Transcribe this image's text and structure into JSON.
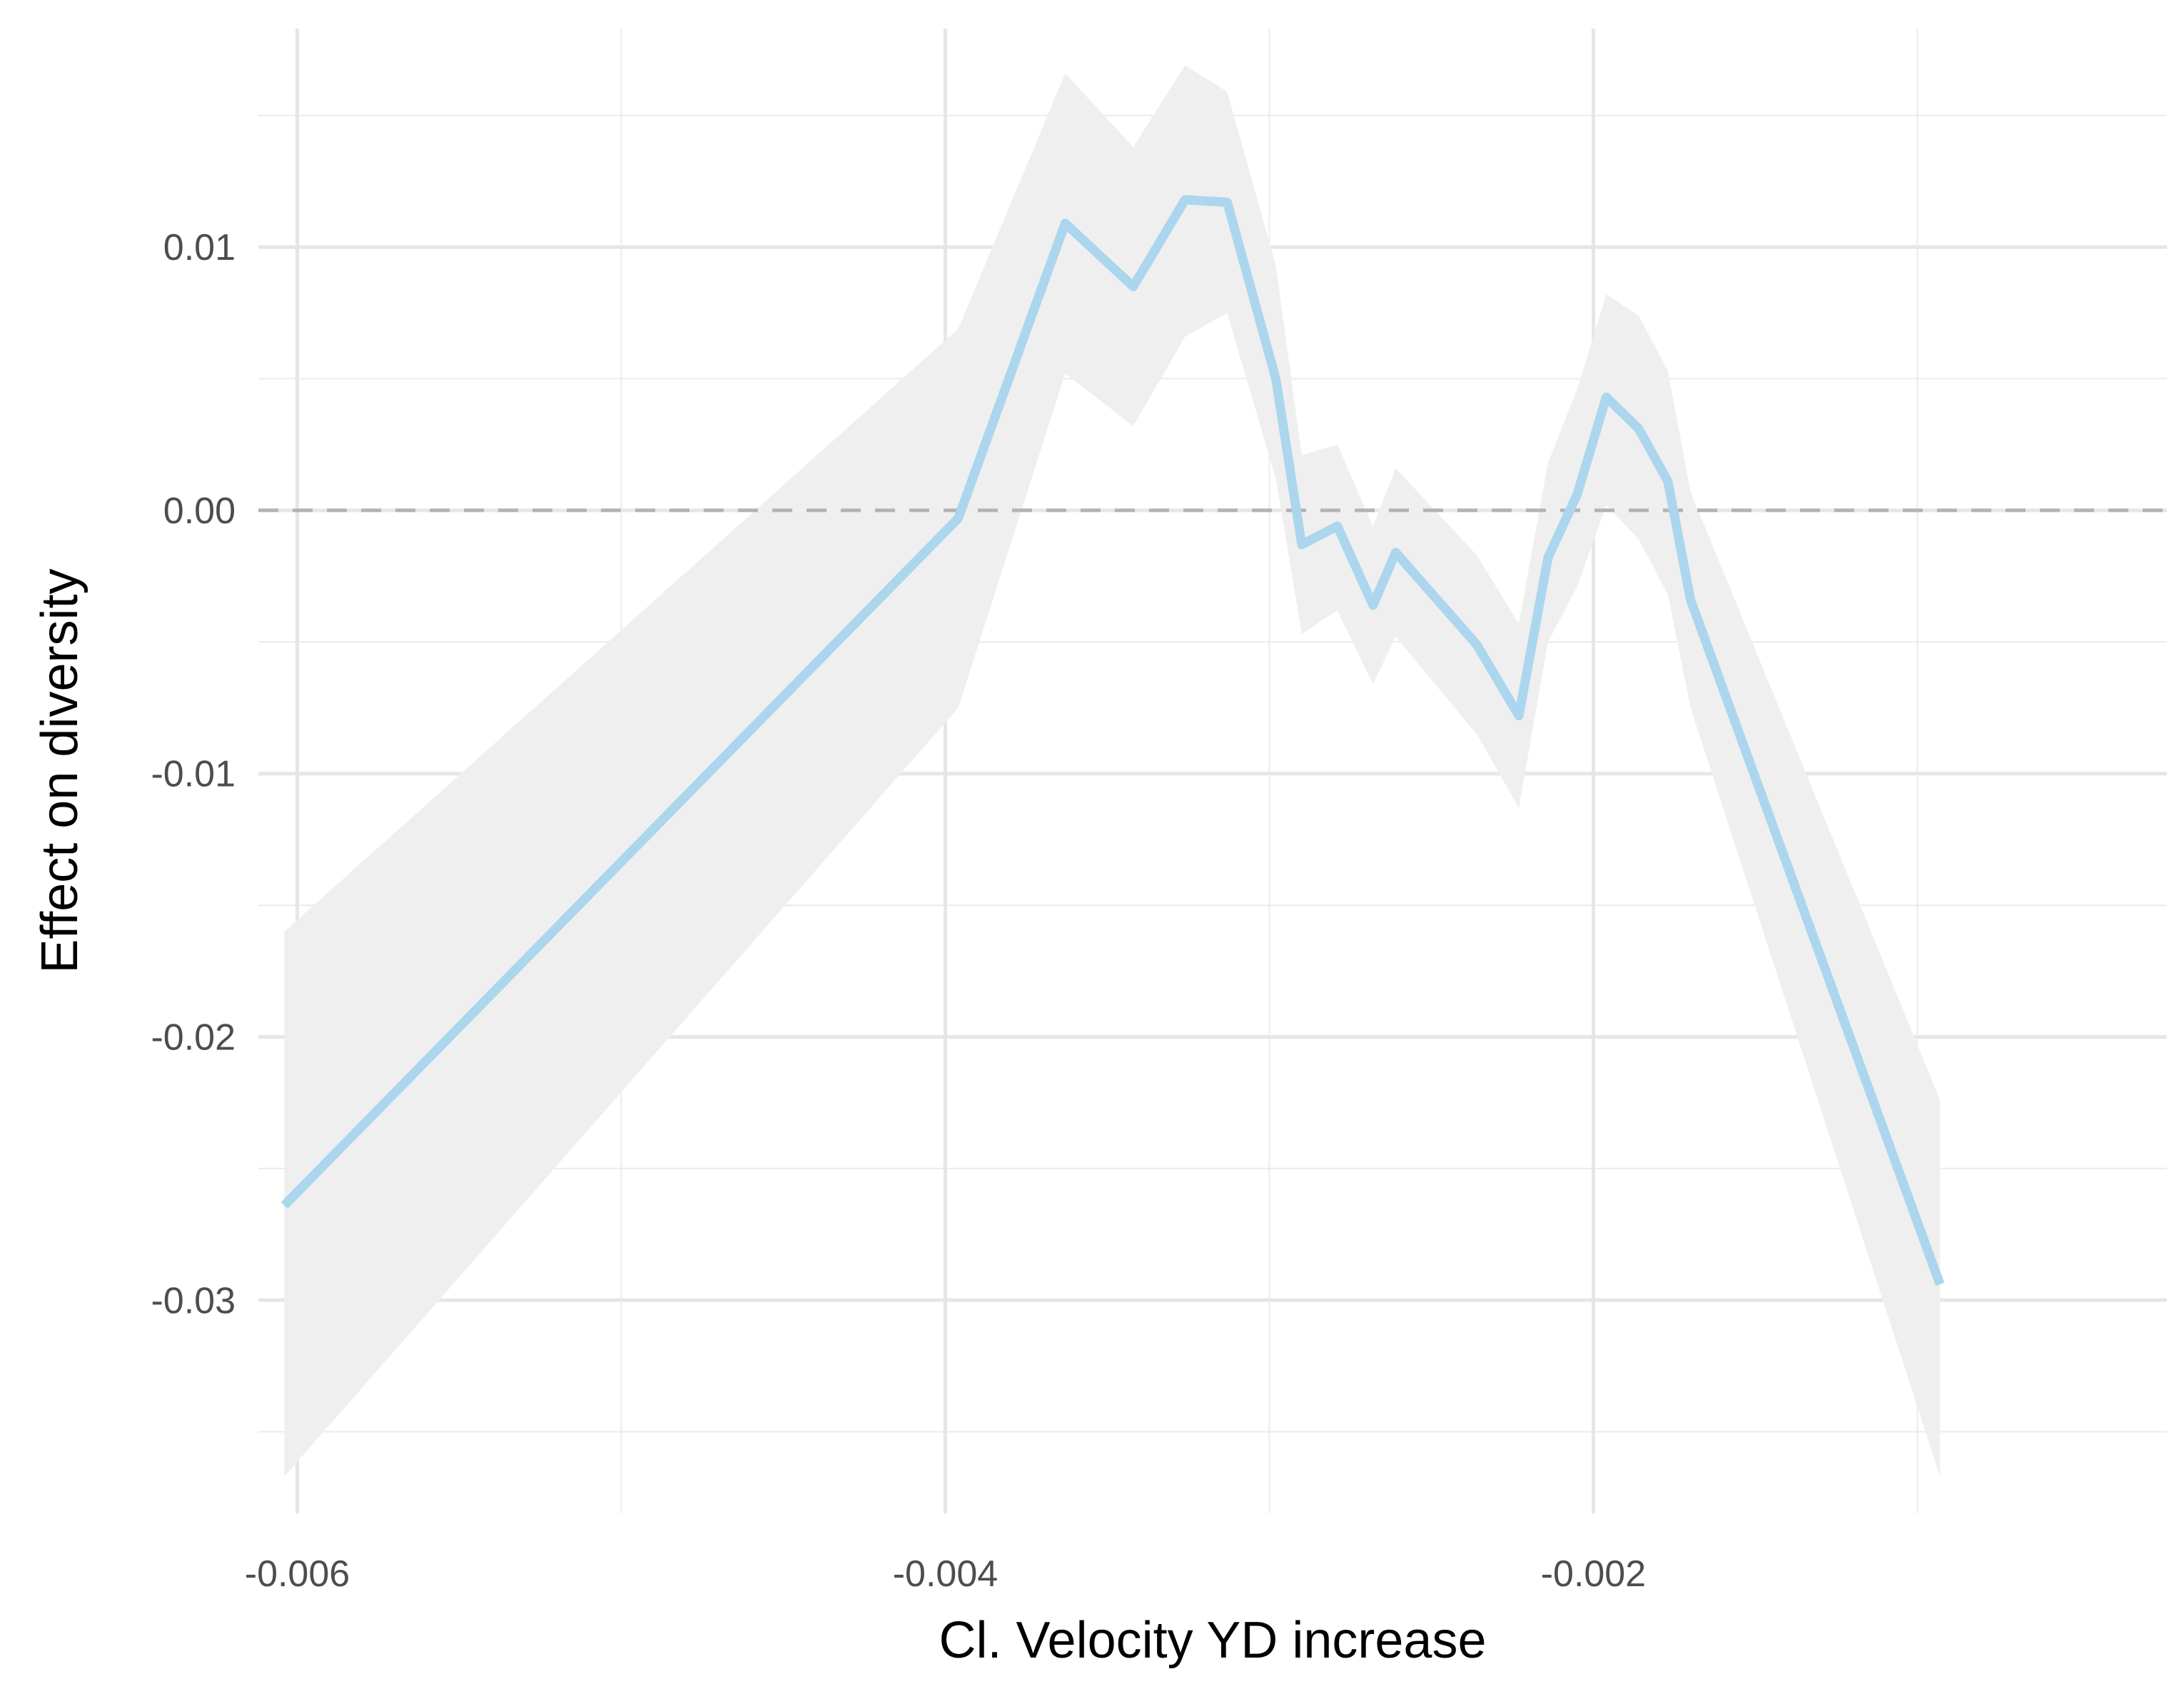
{
  "chart_data": {
    "type": "line",
    "title": "",
    "xlabel": "Cl. Velocity YD increase",
    "ylabel": "Effect on diversity",
    "xlim": [
      -0.00612,
      -0.00023
    ],
    "ylim": [
      -0.0381,
      0.0183
    ],
    "x_ticks": [
      {
        "value": -0.006,
        "label": "-0.006"
      },
      {
        "value": -0.004,
        "label": "-0.004"
      },
      {
        "value": -0.002,
        "label": "-0.002"
      }
    ],
    "x_minor_ticks": [
      -0.005,
      -0.003,
      -0.001
    ],
    "y_ticks": [
      {
        "value": 0.01,
        "label": "0.01"
      },
      {
        "value": 0.0,
        "label": "0.00"
      },
      {
        "value": -0.01,
        "label": "-0.01"
      },
      {
        "value": -0.02,
        "label": "-0.02"
      },
      {
        "value": -0.03,
        "label": "-0.03"
      }
    ],
    "y_minor_ticks": [
      0.015,
      0.005,
      -0.005,
      -0.015,
      -0.025,
      -0.035
    ],
    "reference_line": {
      "y": 0.0,
      "style": "dashed",
      "color": "#b3b3b3"
    },
    "grid": true,
    "line_color": "#abd6ee",
    "band_color": "#efefef",
    "series": [
      {
        "x": [
          -0.00604,
          -0.00396,
          -0.00363,
          -0.00342,
          -0.00326,
          -0.00313,
          -0.00298,
          -0.0029,
          -0.00279,
          -0.00268,
          -0.00261,
          -0.00236,
          -0.00223,
          -0.00214,
          -0.00205,
          -0.00196,
          -0.00186,
          -0.00177,
          -0.0017,
          -0.00093
        ],
        "y": [
          -0.0264,
          -0.0003,
          0.0109,
          0.0085,
          0.0118,
          0.0117,
          0.005,
          -0.0013,
          -0.0006,
          -0.0036,
          -0.0016,
          -0.0051,
          -0.0078,
          -0.0018,
          0.0006,
          0.0043,
          0.0031,
          0.0011,
          -0.0034,
          -0.0294
        ],
        "lower": [
          -0.0367,
          -0.0075,
          0.0052,
          0.0032,
          0.0066,
          0.0075,
          0.0012,
          -0.0047,
          -0.0038,
          -0.0066,
          -0.0048,
          -0.0085,
          -0.0113,
          -0.005,
          -0.0029,
          0.0002,
          -0.0011,
          -0.0032,
          -0.0075,
          -0.0367
        ],
        "upper": [
          -0.016,
          0.0069,
          0.0166,
          0.0138,
          0.0169,
          0.0159,
          0.0093,
          0.0021,
          0.0025,
          -0.0006,
          0.0016,
          -0.0017,
          -0.0043,
          0.0018,
          0.0046,
          0.0082,
          0.0074,
          0.0053,
          0.0007,
          -0.0224
        ]
      }
    ]
  }
}
